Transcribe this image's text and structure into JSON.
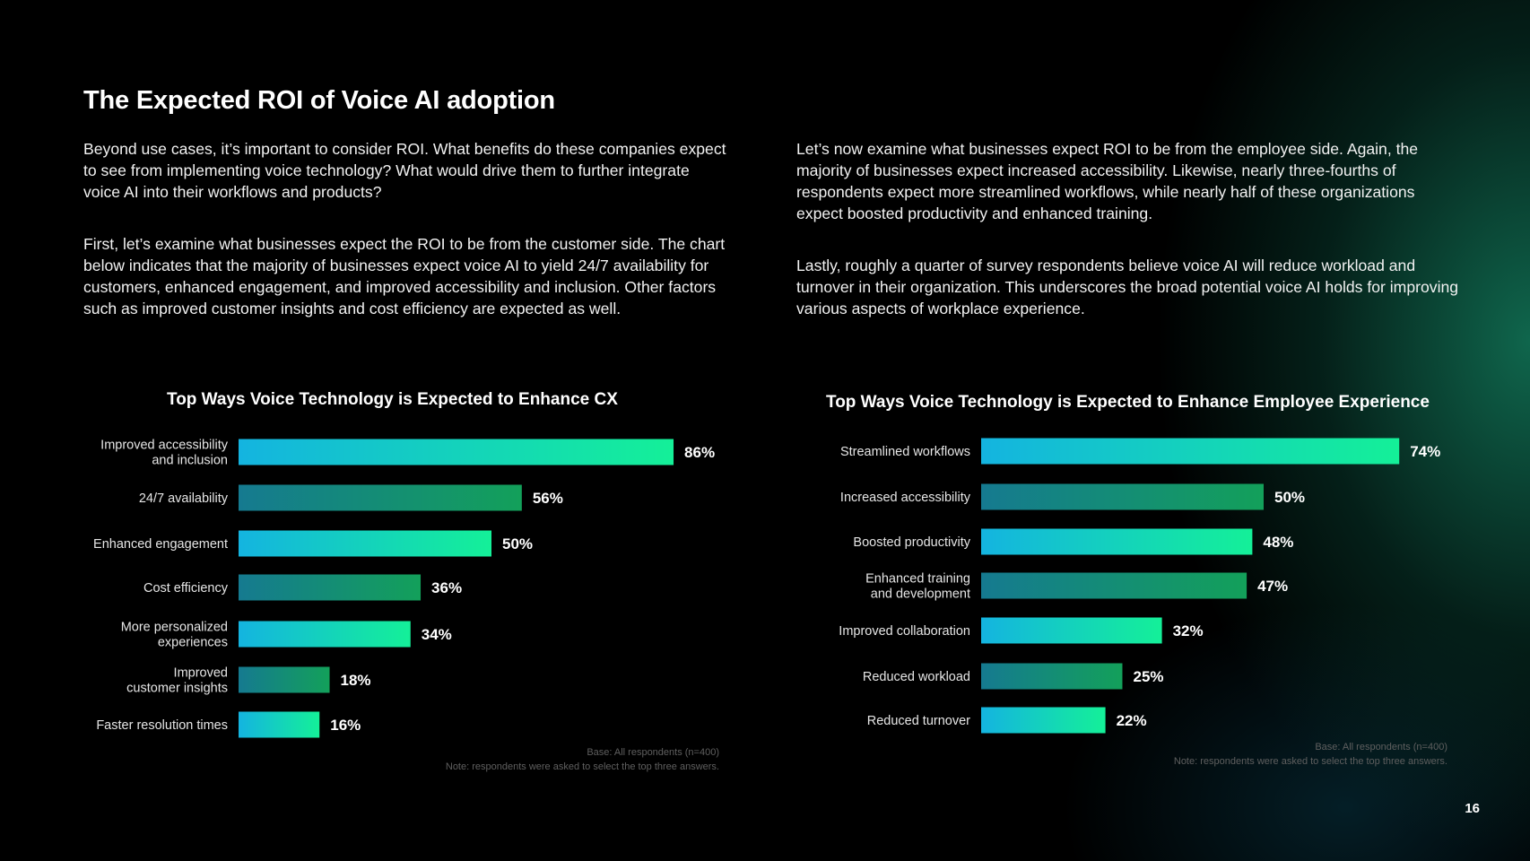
{
  "page": {
    "title": "The Expected ROI of Voice AI adoption",
    "page_number": "16"
  },
  "left_text": {
    "p1": "Beyond use cases, it’s important to consider ROI. What benefits do these companies expect to see from implementing voice technology? What would drive them to further integrate voice AI into their workflows and products?",
    "p2": "First, let’s examine what businesses expect the ROI to be from the customer side. The chart below indicates that the majority of businesses expect voice AI to yield 24/7 availability for customers, enhanced engagement, and improved accessibility and inclusion. Other factors such as improved customer insights and cost efficiency are expected as well."
  },
  "right_text": {
    "p1": "Let’s now examine what businesses expect ROI to be from the employee side. Again, the majority of businesses expect increased accessibility. Likewise, nearly three-fourths of respondents expect more streamlined workflows, while nearly half of these organizations expect boosted productivity and enhanced training.",
    "p2": "Lastly, roughly a quarter of survey respondents believe voice AI will reduce workload and turnover in their organization. This underscores the broad potential voice AI holds for improving various aspects of workplace experience."
  },
  "colors": {
    "gradient_bright": [
      "#14b4e0",
      "#14f098"
    ],
    "gradient_dark": [
      "#157a90",
      "#13a05a"
    ]
  },
  "chart_data": [
    {
      "type": "bar",
      "orientation": "horizontal",
      "title": "Top Ways Voice Technology is Expected to Enhance CX",
      "categories": [
        "Improved accessibility\nand inclusion",
        "24/7 availability",
        "Enhanced engagement",
        "Cost efficiency",
        "More personalized\nexperiences",
        "Improved\ncustomer insights",
        "Faster resolution times"
      ],
      "values": [
        86,
        56,
        50,
        36,
        34,
        18,
        16
      ],
      "value_labels": [
        "86%",
        "56%",
        "50%",
        "36%",
        "34%",
        "18%",
        "16%"
      ],
      "unit": "%",
      "footnote": [
        "Base: All respondents (n=400)",
        "Note: respondents were asked to select the top three answers."
      ]
    },
    {
      "type": "bar",
      "orientation": "horizontal",
      "title": "Top Ways Voice Technology is Expected to Enhance Employee Experience",
      "categories": [
        "Streamlined workflows",
        "Increased accessibility",
        "Boosted productivity",
        "Enhanced training\nand development",
        "Improved collaboration",
        "Reduced workload",
        "Reduced turnover"
      ],
      "values": [
        74,
        50,
        48,
        47,
        32,
        25,
        22
      ],
      "value_labels": [
        "74%",
        "50%",
        "48%",
        "47%",
        "32%",
        "25%",
        "22%"
      ],
      "unit": "%",
      "footnote": [
        "Base: All respondents (n=400)",
        "Note: respondents were asked to select the top three answers."
      ]
    }
  ]
}
